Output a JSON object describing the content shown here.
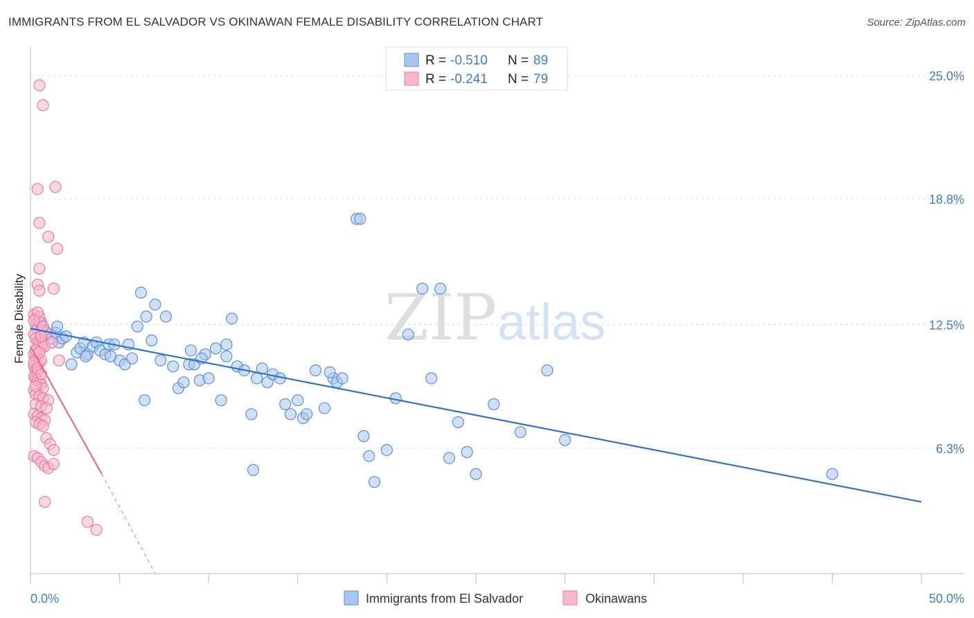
{
  "title": "IMMIGRANTS FROM EL SALVADOR VS OKINAWAN FEMALE DISABILITY CORRELATION CHART",
  "source": "Source: ZipAtlas.com",
  "watermark": {
    "zip": "ZIP",
    "atlas": "atlas"
  },
  "colors": {
    "blue": "#5b8fd6",
    "blue_fill": "#aac6f0",
    "blue_line": "#2a72d4",
    "pink": "#e8799f",
    "pink_fill": "#f7b8cc",
    "pink_line": "#e8699a",
    "tick_text": "#3f7dd0",
    "grid": "#dddddd"
  },
  "legend": {
    "rows": [
      {
        "r_label": "R = ",
        "r_value": "-0.510",
        "n_label": "N = ",
        "n_value": "89"
      },
      {
        "r_label": "R = ",
        "r_value": "-0.241",
        "n_label": "N = ",
        "n_value": "79"
      }
    ]
  },
  "bottom_legend": [
    "Immigrants from El Salvador",
    "Okinawans"
  ],
  "chart_data": {
    "type": "scatter",
    "xlabel": "",
    "ylabel": "Female Disability",
    "xlim": [
      0,
      50
    ],
    "ylim": [
      0,
      26
    ],
    "x_tick_labels": [
      {
        "value": 0,
        "label": "0.0%"
      },
      {
        "value": 50,
        "label": "50.0%"
      }
    ],
    "y_tick_labels": [
      {
        "value": 6.3,
        "label": "6.3%"
      },
      {
        "value": 12.5,
        "label": "12.5%"
      },
      {
        "value": 18.8,
        "label": "18.8%"
      },
      {
        "value": 25.0,
        "label": "25.0%"
      }
    ],
    "grid": true,
    "series": [
      {
        "name": "Immigrants from El Salvador",
        "color": "#5b8fd6",
        "trend": {
          "x0": 0.0,
          "y0": 12.3,
          "x1": 50.0,
          "y1": 3.6
        },
        "points": [
          [
            0.6,
            12.6
          ],
          [
            0.8,
            12.2
          ],
          [
            1.0,
            12.0
          ],
          [
            1.2,
            11.8
          ],
          [
            1.4,
            12.1
          ],
          [
            1.6,
            11.6
          ],
          [
            1.8,
            11.8
          ],
          [
            2.0,
            11.9
          ],
          [
            2.3,
            10.5
          ],
          [
            2.6,
            11.1
          ],
          [
            2.8,
            11.3
          ],
          [
            3.0,
            11.6
          ],
          [
            3.2,
            11.0
          ],
          [
            3.5,
            11.4
          ],
          [
            3.7,
            11.6
          ],
          [
            3.9,
            11.2
          ],
          [
            4.2,
            11.0
          ],
          [
            4.4,
            11.5
          ],
          [
            4.7,
            11.5
          ],
          [
            5.0,
            10.7
          ],
          [
            5.3,
            10.5
          ],
          [
            5.5,
            11.5
          ],
          [
            5.7,
            10.8
          ],
          [
            6.0,
            12.4
          ],
          [
            6.2,
            14.1
          ],
          [
            6.5,
            12.9
          ],
          [
            6.8,
            11.7
          ],
          [
            7.0,
            13.5
          ],
          [
            7.3,
            10.7
          ],
          [
            7.6,
            12.9
          ],
          [
            8.0,
            10.4
          ],
          [
            8.3,
            9.3
          ],
          [
            8.6,
            9.6
          ],
          [
            8.9,
            10.5
          ],
          [
            9.2,
            10.5
          ],
          [
            9.5,
            9.7
          ],
          [
            9.8,
            11.0
          ],
          [
            10.0,
            9.8
          ],
          [
            10.4,
            11.3
          ],
          [
            10.7,
            8.7
          ],
          [
            11.0,
            11.5
          ],
          [
            11.3,
            12.8
          ],
          [
            11.6,
            10.4
          ],
          [
            12.0,
            10.2
          ],
          [
            12.4,
            8.0
          ],
          [
            12.7,
            9.8
          ],
          [
            13.0,
            10.3
          ],
          [
            13.3,
            9.6
          ],
          [
            13.6,
            10.0
          ],
          [
            14.0,
            9.8
          ],
          [
            14.3,
            8.5
          ],
          [
            14.6,
            8.0
          ],
          [
            15.0,
            8.7
          ],
          [
            15.3,
            7.8
          ],
          [
            15.5,
            8.0
          ],
          [
            16.0,
            10.2
          ],
          [
            16.5,
            8.3
          ],
          [
            17.0,
            9.8
          ],
          [
            17.2,
            9.6
          ],
          [
            17.5,
            9.8
          ],
          [
            18.3,
            17.8
          ],
          [
            18.5,
            17.8
          ],
          [
            18.7,
            6.9
          ],
          [
            19.0,
            5.9
          ],
          [
            19.3,
            4.6
          ],
          [
            20.0,
            6.2
          ],
          [
            20.5,
            8.8
          ],
          [
            21.2,
            12.0
          ],
          [
            22.0,
            14.3
          ],
          [
            23.0,
            14.3
          ],
          [
            22.5,
            9.8
          ],
          [
            23.5,
            5.8
          ],
          [
            24.0,
            7.6
          ],
          [
            24.5,
            6.1
          ],
          [
            25.0,
            5.0
          ],
          [
            26.0,
            8.5
          ],
          [
            27.5,
            7.1
          ],
          [
            29.0,
            10.2
          ],
          [
            30.0,
            6.7
          ],
          [
            12.5,
            5.2
          ],
          [
            45.0,
            5.0
          ],
          [
            9.0,
            11.2
          ],
          [
            9.6,
            10.8
          ],
          [
            4.5,
            10.9
          ],
          [
            1.5,
            12.4
          ],
          [
            3.1,
            10.9
          ],
          [
            11.0,
            10.9
          ],
          [
            16.8,
            10.1
          ],
          [
            6.4,
            8.7
          ]
        ]
      },
      {
        "name": "Okinawans",
        "color": "#e8799f",
        "trend": {
          "x0": 0.0,
          "y0": 11.4,
          "x1": 4.0,
          "y1": 5.0,
          "x_dash_end": 7.0,
          "y_dash_end": 0.0
        },
        "points": [
          [
            0.5,
            24.5
          ],
          [
            0.7,
            23.5
          ],
          [
            0.4,
            19.3
          ],
          [
            1.4,
            19.4
          ],
          [
            0.5,
            17.6
          ],
          [
            1.0,
            16.9
          ],
          [
            1.5,
            16.3
          ],
          [
            0.5,
            15.3
          ],
          [
            0.4,
            14.5
          ],
          [
            0.5,
            14.2
          ],
          [
            1.3,
            14.3
          ],
          [
            0.2,
            13.0
          ],
          [
            0.3,
            12.8
          ],
          [
            0.3,
            12.5
          ],
          [
            0.4,
            12.3
          ],
          [
            0.5,
            12.6
          ],
          [
            0.6,
            12.2
          ],
          [
            0.2,
            12.0
          ],
          [
            0.3,
            11.8
          ],
          [
            0.4,
            11.6
          ],
          [
            0.5,
            11.5
          ],
          [
            0.6,
            11.3
          ],
          [
            0.7,
            11.5
          ],
          [
            0.8,
            11.4
          ],
          [
            0.9,
            12.1
          ],
          [
            0.2,
            11.0
          ],
          [
            0.3,
            10.8
          ],
          [
            0.4,
            10.5
          ],
          [
            0.5,
            10.6
          ],
          [
            0.6,
            10.7
          ],
          [
            1.6,
            10.7
          ],
          [
            0.2,
            10.4
          ],
          [
            0.3,
            10.2
          ],
          [
            0.4,
            10.1
          ],
          [
            0.2,
            9.9
          ],
          [
            0.3,
            9.8
          ],
          [
            0.4,
            9.7
          ],
          [
            0.5,
            9.6
          ],
          [
            0.6,
            9.5
          ],
          [
            0.7,
            9.3
          ],
          [
            0.2,
            9.2
          ],
          [
            0.3,
            9.0
          ],
          [
            0.5,
            8.9
          ],
          [
            0.7,
            8.8
          ],
          [
            1.0,
            8.7
          ],
          [
            0.3,
            8.5
          ],
          [
            0.6,
            8.4
          ],
          [
            0.9,
            8.3
          ],
          [
            0.2,
            8.0
          ],
          [
            0.4,
            7.9
          ],
          [
            0.6,
            7.8
          ],
          [
            0.8,
            7.7
          ],
          [
            0.3,
            7.6
          ],
          [
            0.5,
            7.5
          ],
          [
            0.7,
            7.4
          ],
          [
            0.9,
            6.8
          ],
          [
            1.1,
            6.5
          ],
          [
            1.3,
            6.2
          ],
          [
            0.2,
            5.9
          ],
          [
            0.4,
            5.8
          ],
          [
            0.6,
            5.6
          ],
          [
            0.8,
            5.4
          ],
          [
            1.0,
            5.3
          ],
          [
            1.3,
            5.5
          ],
          [
            0.8,
            3.6
          ],
          [
            3.2,
            2.6
          ],
          [
            3.7,
            2.2
          ],
          [
            0.3,
            11.2
          ],
          [
            0.5,
            11.1
          ],
          [
            0.2,
            10.6
          ],
          [
            0.4,
            10.3
          ],
          [
            0.6,
            10.0
          ],
          [
            0.3,
            9.4
          ],
          [
            0.5,
            12.9
          ],
          [
            0.7,
            12.4
          ],
          [
            0.4,
            13.1
          ],
          [
            0.6,
            11.9
          ],
          [
            1.2,
            11.6
          ],
          [
            0.2,
            12.7
          ]
        ]
      }
    ]
  }
}
